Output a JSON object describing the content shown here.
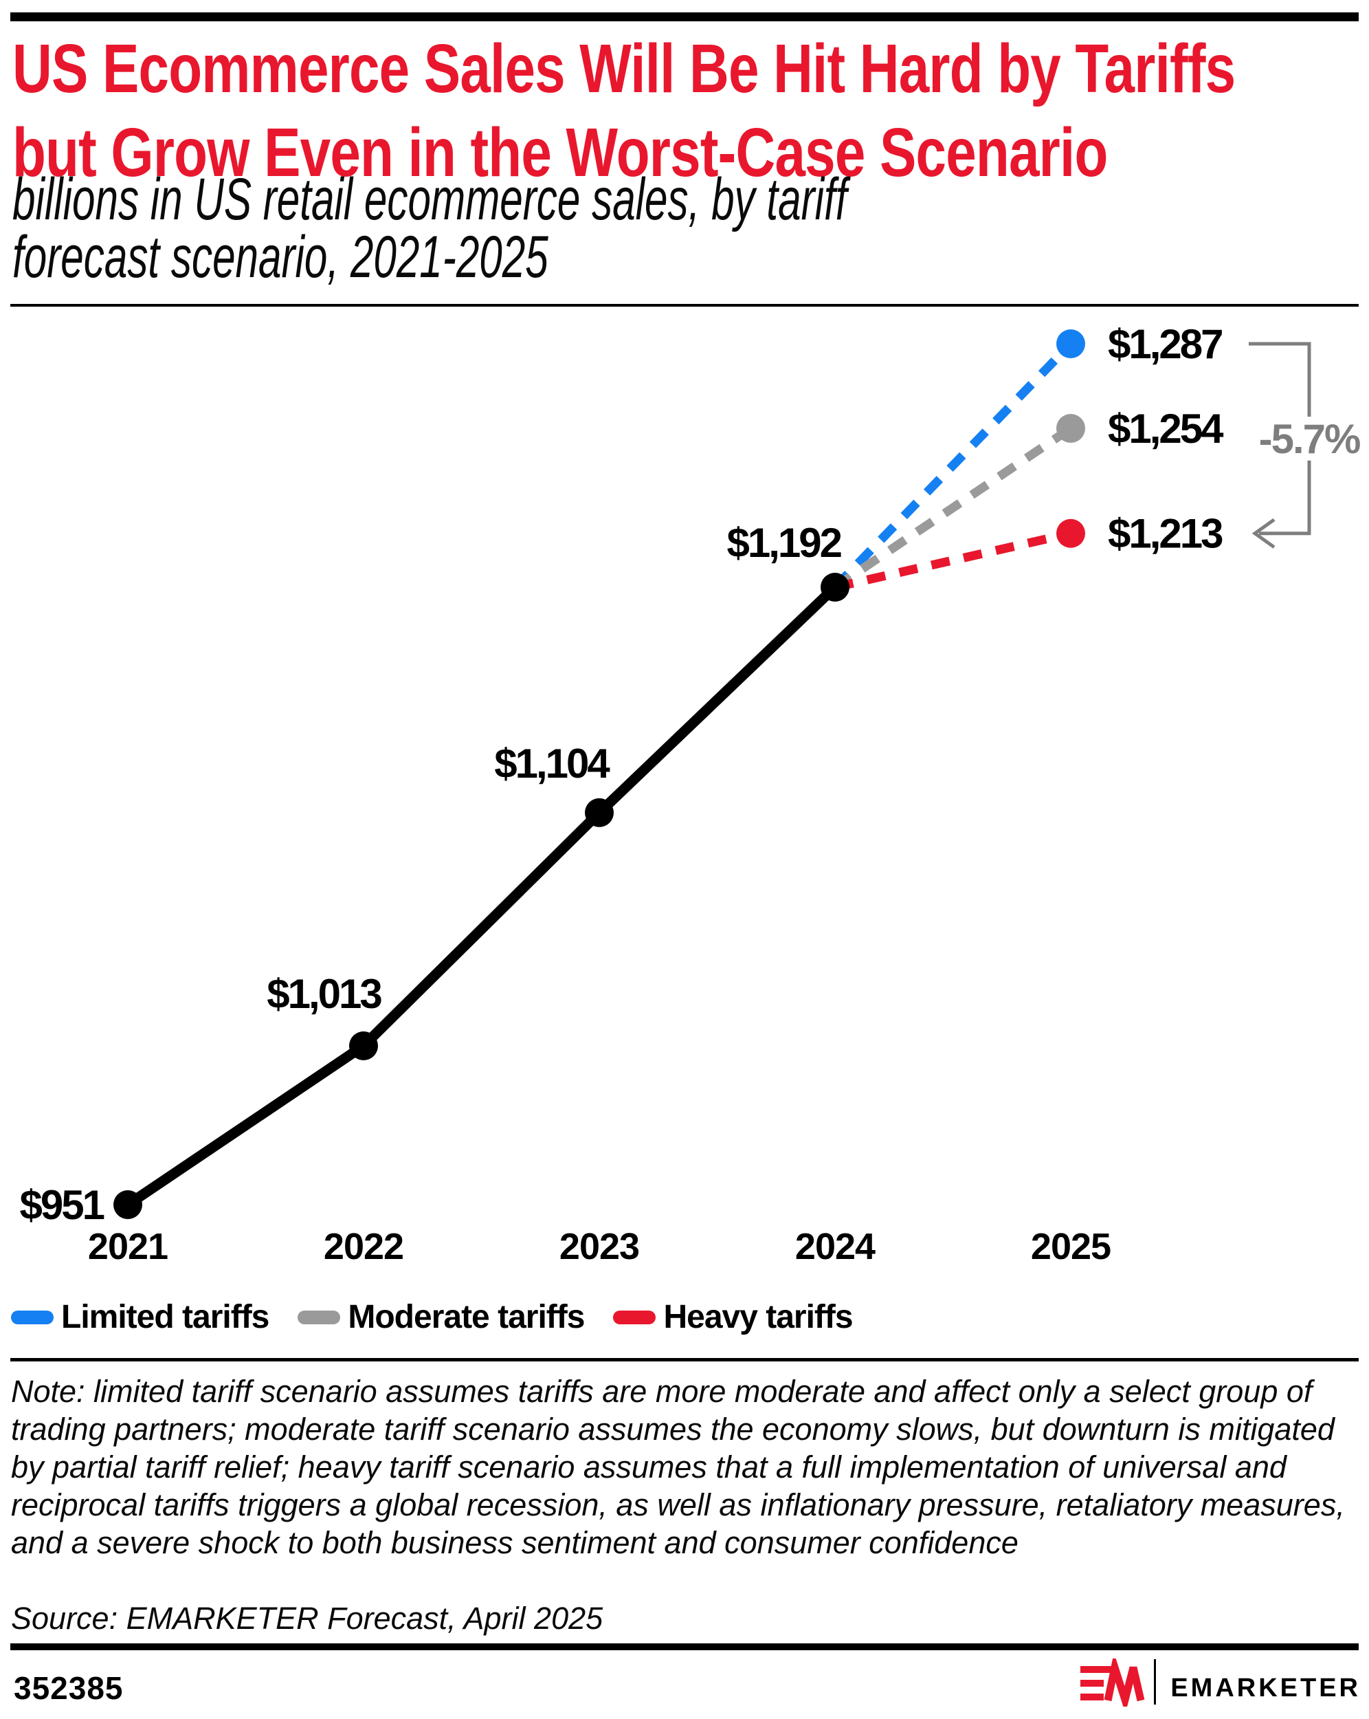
{
  "page": {
    "title_lines": [
      "US Ecommerce Sales Will Be Hit Hard by Tariffs",
      "but Grow Even in the Worst-Case Scenario"
    ],
    "subtitle_lines": [
      "billions in US retail ecommerce sales, by tariff",
      "forecast scenario, 2021-2025"
    ],
    "note": "Note: limited tariff scenario assumes tariffs are more moderate and affect only a select group of trading partners; moderate tariff scenario assumes the economy slows, but downturn is mitigated by partial tariff relief; heavy tariff scenario assumes that a full implementation of universal and reciprocal tariffs triggers a global recession, as well as inflationary pressure, retaliatory measures, and a severe shock to both business sentiment and consumer confidence",
    "source": "Source: EMARKETER Forecast, April 2025",
    "footer_id": "352385",
    "brand": "EMARKETER"
  },
  "colors": {
    "title_red": "#e8172d",
    "blue": "#1580f2",
    "gray": "#9a9a9a",
    "red": "#e8172d",
    "black": "#000000",
    "annotation_gray": "#7e7e7e"
  },
  "legend": [
    {
      "label": "Limited tariffs",
      "color": "#1580f2"
    },
    {
      "label": "Moderate tariffs",
      "color": "#9a9a9a"
    },
    {
      "label": "Heavy tariffs",
      "color": "#e8172d"
    }
  ],
  "chart_data": {
    "type": "line",
    "title": "US Ecommerce Sales Will Be Hit Hard by Tariffs but Grow Even in the Worst-Case Scenario",
    "subtitle": "billions in US retail ecommerce sales, by tariff forecast scenario, 2021-2025",
    "categories": [
      "2021",
      "2022",
      "2023",
      "2024",
      "2025"
    ],
    "historical": {
      "name": "US retail ecommerce sales (actual/forecast base)",
      "x": [
        2021,
        2022,
        2023,
        2024
      ],
      "values": [
        951,
        1013,
        1104,
        1192
      ],
      "labels": [
        "$951",
        "$1,013",
        "$1,104",
        "$1,192"
      ],
      "color": "#000000"
    },
    "scenarios": [
      {
        "name": "Limited tariffs",
        "year": 2025,
        "value": 1287,
        "label": "$1,287",
        "color": "#1580f2"
      },
      {
        "name": "Moderate tariffs",
        "year": 2025,
        "value": 1254,
        "label": "$1,254",
        "color": "#9a9a9a"
      },
      {
        "name": "Heavy tariffs",
        "year": 2025,
        "value": 1213,
        "label": "$1,213",
        "color": "#e8172d"
      }
    ],
    "annotation": "-5.7%",
    "ylim": [
      951,
      1287
    ],
    "grid": false,
    "legend_position": "bottom"
  }
}
